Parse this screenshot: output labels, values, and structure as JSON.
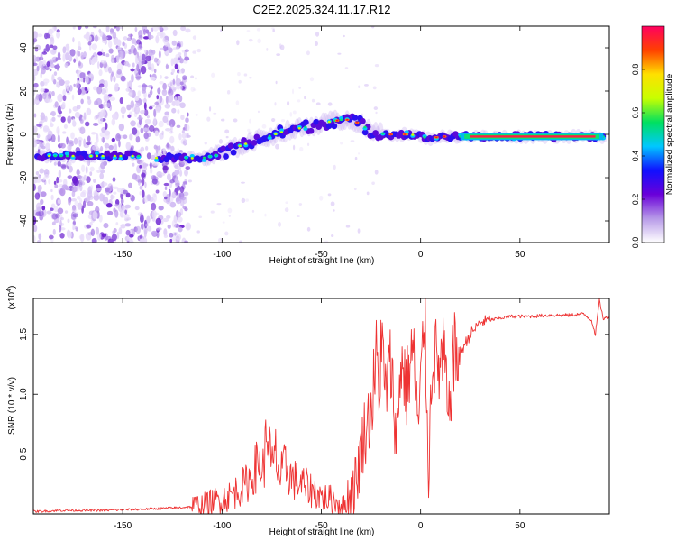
{
  "figure_title": "C2E2.2025.324.11.17.R12",
  "chart_data": [
    {
      "type": "heatmap",
      "title": "C2E2.2025.324.11.17.R12",
      "xlabel": "Height of straight line (km)",
      "ylabel": "Frequency (Hz)",
      "xlim": [
        -195,
        95
      ],
      "ylim": [
        -50,
        50
      ],
      "xticks": [
        -150,
        -100,
        -50,
        0,
        50
      ],
      "xtick_labels": [
        "-150",
        "-100",
        "-50",
        "0",
        "50"
      ],
      "yticks": [
        -40,
        -20,
        0,
        20,
        40
      ],
      "ytick_labels": [
        "-40",
        "-20",
        "0",
        "20",
        "40"
      ],
      "colorbar": {
        "label": "Normalized spectral amplitude",
        "range": [
          0,
          1
        ],
        "ticks": [
          0.0,
          0.2,
          0.4,
          0.6,
          0.8
        ],
        "tick_labels": [
          "0.0",
          "0.2",
          "0.4",
          "0.6",
          "0.8"
        ],
        "colors": [
          "#ffffff",
          "#b79ae8",
          "#6a00d9",
          "#1010ff",
          "#00c8ff",
          "#00e060",
          "#c8ff00",
          "#ffe000",
          "#ff4000",
          "#ff0060"
        ]
      },
      "ridge": [
        {
          "x": -195,
          "y": -10
        },
        {
          "x": -140,
          "y": -10
        },
        {
          "x": -132,
          "y": -11
        },
        {
          "x": -110,
          "y": -11
        },
        {
          "x": -100,
          "y": -9
        },
        {
          "x": -90,
          "y": -5
        },
        {
          "x": -80,
          "y": -2
        },
        {
          "x": -70,
          "y": 1
        },
        {
          "x": -60,
          "y": 3
        },
        {
          "x": -45,
          "y": 6
        },
        {
          "x": -38,
          "y": 7
        },
        {
          "x": -30,
          "y": 5
        },
        {
          "x": -25,
          "y": 1
        },
        {
          "x": -15,
          "y": 0
        },
        {
          "x": -5,
          "y": 0
        },
        {
          "x": 0,
          "y": -1
        },
        {
          "x": 5,
          "y": -2
        },
        {
          "x": 10,
          "y": -1
        },
        {
          "x": 20,
          "y": -1
        },
        {
          "x": 95,
          "y": -1
        }
      ]
    },
    {
      "type": "line",
      "xlabel": "Height of straight line (km)",
      "ylabel": "SNR (10 * v/v)",
      "yscale_label": "(x10",
      "yscale_exp": "4",
      "yscale_close": ")",
      "xlim": [
        -195,
        95
      ],
      "ylim": [
        0,
        1.8
      ],
      "xticks": [
        -150,
        -100,
        -50,
        0,
        50
      ],
      "xtick_labels": [
        "-150",
        "-100",
        "-50",
        "0",
        "50"
      ],
      "yticks": [
        0.5,
        1.0,
        1.5
      ],
      "ytick_labels": [
        "0.5",
        "1.0",
        "1.5"
      ],
      "color": "#ee3333",
      "series": [
        {
          "name": "SNR",
          "points": [
            [
              -195,
              0.02
            ],
            [
              -180,
              0.03
            ],
            [
              -160,
              0.03
            ],
            [
              -140,
              0.04
            ],
            [
              -125,
              0.05
            ],
            [
              -115,
              0.06
            ],
            [
              -108,
              0.08
            ],
            [
              -102,
              0.12
            ],
            [
              -96,
              0.15
            ],
            [
              -92,
              0.2
            ],
            [
              -88,
              0.25
            ],
            [
              -85,
              0.32
            ],
            [
              -82,
              0.42
            ],
            [
              -79,
              0.38
            ],
            [
              -77,
              0.75
            ],
            [
              -75,
              0.35
            ],
            [
              -73,
              0.5
            ],
            [
              -71,
              0.3
            ],
            [
              -68,
              0.4
            ],
            [
              -65,
              0.3
            ],
            [
              -60,
              0.25
            ],
            [
              -55,
              0.2
            ],
            [
              -50,
              0.15
            ],
            [
              -45,
              0.12
            ],
            [
              -40,
              0.08
            ],
            [
              -38,
              0.05
            ],
            [
              -36,
              0.15
            ],
            [
              -34,
              0.22
            ],
            [
              -32,
              0.3
            ],
            [
              -30,
              0.55
            ],
            [
              -28,
              0.7
            ],
            [
              -25,
              0.85
            ],
            [
              -22,
              1.35
            ],
            [
              -21,
              0.8
            ],
            [
              -20,
              1.55
            ],
            [
              -18,
              1.0
            ],
            [
              -15,
              1.25
            ],
            [
              -12,
              0.6
            ],
            [
              -10,
              1.3
            ],
            [
              -7,
              1.05
            ],
            [
              -4,
              1.4
            ],
            [
              -1,
              0.7
            ],
            [
              2,
              1.7
            ],
            [
              4,
              0.35
            ],
            [
              6,
              1.4
            ],
            [
              9,
              1.2
            ],
            [
              12,
              1.3
            ],
            [
              14,
              0.7
            ],
            [
              16,
              1.3
            ],
            [
              20,
              1.35
            ],
            [
              25,
              1.5
            ],
            [
              30,
              1.6
            ],
            [
              35,
              1.62
            ],
            [
              45,
              1.65
            ],
            [
              55,
              1.65
            ],
            [
              65,
              1.66
            ],
            [
              75,
              1.66
            ],
            [
              82,
              1.67
            ],
            [
              86,
              1.62
            ],
            [
              88,
              1.5
            ],
            [
              90,
              1.78
            ],
            [
              92,
              1.63
            ],
            [
              95,
              1.65
            ]
          ]
        }
      ]
    }
  ]
}
